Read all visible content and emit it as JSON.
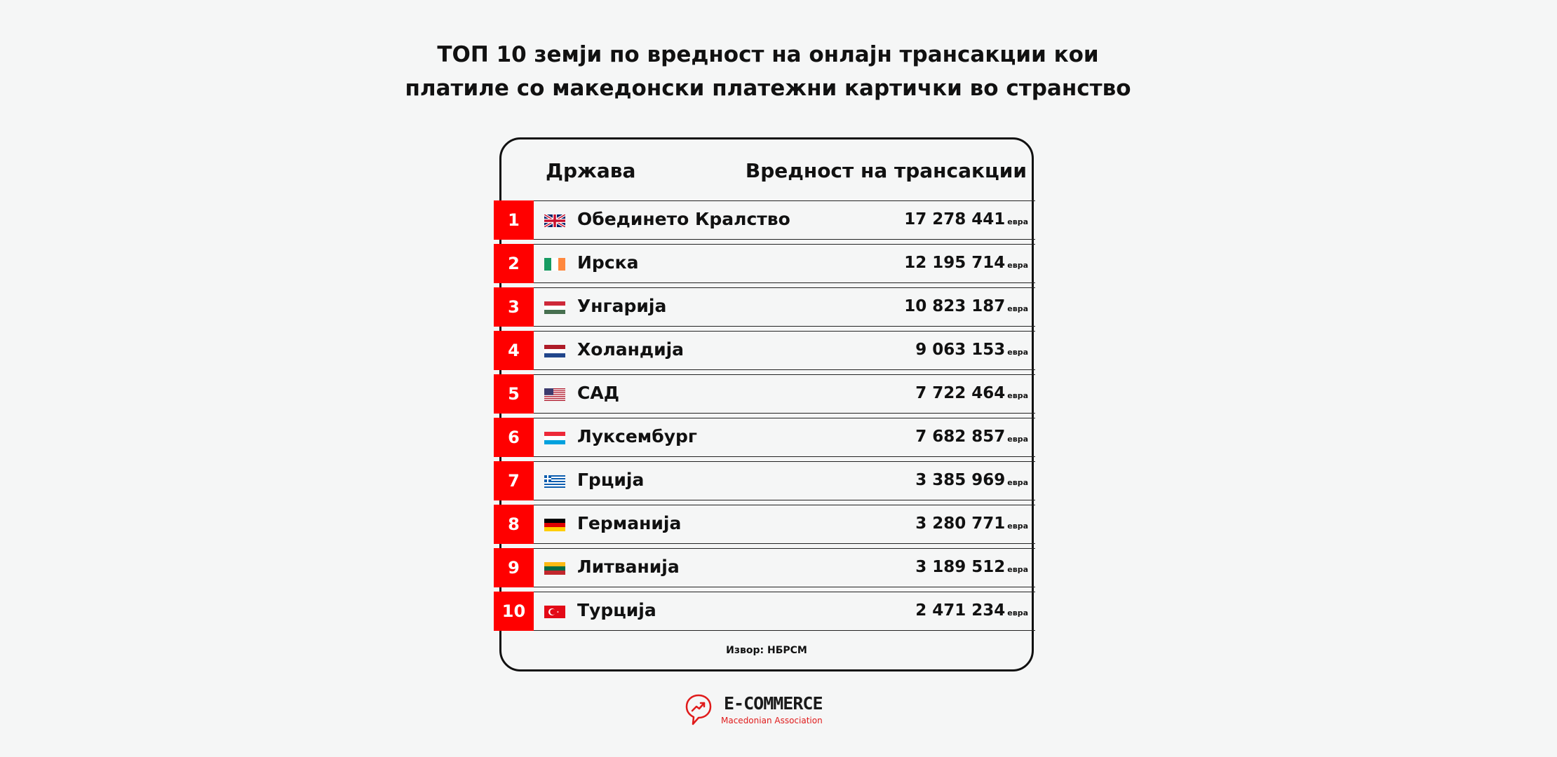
{
  "title": {
    "line1": "ТОП 10 земји по вредност на онлајн трансакции кои",
    "line2": "платиле со македонски платежни картички во странство"
  },
  "table": {
    "header_country": "Држава",
    "header_value": "Вредност на трансакции",
    "unit": "евра",
    "rows": [
      {
        "rank": "1",
        "country": "Обединето Кралство",
        "value": "17 278 441",
        "flag": "uk-flag-icon"
      },
      {
        "rank": "2",
        "country": "Ирска",
        "value": "12 195 714",
        "flag": "ireland-flag-icon"
      },
      {
        "rank": "3",
        "country": "Унгарија",
        "value": "10 823 187",
        "flag": "hungary-flag-icon"
      },
      {
        "rank": "4",
        "country": "Холандија",
        "value": "9 063 153",
        "flag": "netherlands-flag-icon"
      },
      {
        "rank": "5",
        "country": "САД",
        "value": "7 722 464",
        "flag": "usa-flag-icon"
      },
      {
        "rank": "6",
        "country": "Луксембург",
        "value": "7 682 857",
        "flag": "luxembourg-flag-icon"
      },
      {
        "rank": "7",
        "country": "Грција",
        "value": "3 385 969",
        "flag": "greece-flag-icon"
      },
      {
        "rank": "8",
        "country": "Германија",
        "value": "3 280 771",
        "flag": "germany-flag-icon"
      },
      {
        "rank": "9",
        "country": "Литванија",
        "value": "3 189 512",
        "flag": "lithuania-flag-icon"
      },
      {
        "rank": "10",
        "country": "Турција",
        "value": "2 471 234",
        "flag": "turkey-flag-icon"
      }
    ]
  },
  "source": "Извор: НБРСМ",
  "logo": {
    "name": "E-COMMERCE",
    "subtitle": "Macedonian Association"
  },
  "colors": {
    "accent": "#ff0000",
    "background": "#f5f6f6",
    "text": "#111111"
  }
}
